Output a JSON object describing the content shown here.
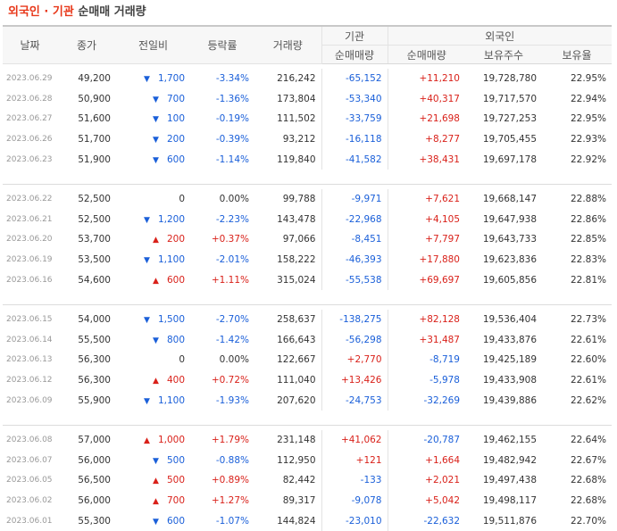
{
  "title": {
    "part1": "외국인",
    "sep": "·",
    "part2": "기관",
    "part3": "순매매 거래량"
  },
  "headers": {
    "date": "날짜",
    "close": "종가",
    "change": "전일비",
    "rate": "등락률",
    "volume": "거래량",
    "inst": "기관",
    "foreign": "외국인",
    "inst_net": "순매매량",
    "foreign_net": "순매매량",
    "holdings": "보유주수",
    "ratio": "보유율"
  },
  "colors": {
    "up": "#d9211a",
    "down": "#1a5fd9"
  },
  "groups": [
    [
      {
        "date": "2023.06.29",
        "close": "49,200",
        "dir": "down",
        "chg": "1,700",
        "rate": "-3.34%",
        "vol": "216,242",
        "inst": "-65,152",
        "foreign": "+11,210",
        "hold": "19,728,780",
        "ratio": "22.95%"
      },
      {
        "date": "2023.06.28",
        "close": "50,900",
        "dir": "down",
        "chg": "700",
        "rate": "-1.36%",
        "vol": "173,804",
        "inst": "-53,340",
        "foreign": "+40,317",
        "hold": "19,717,570",
        "ratio": "22.94%"
      },
      {
        "date": "2023.06.27",
        "close": "51,600",
        "dir": "down",
        "chg": "100",
        "rate": "-0.19%",
        "vol": "111,502",
        "inst": "-33,759",
        "foreign": "+21,698",
        "hold": "19,727,253",
        "ratio": "22.95%"
      },
      {
        "date": "2023.06.26",
        "close": "51,700",
        "dir": "down",
        "chg": "200",
        "rate": "-0.39%",
        "vol": "93,212",
        "inst": "-16,118",
        "foreign": "+8,277",
        "hold": "19,705,455",
        "ratio": "22.93%"
      },
      {
        "date": "2023.06.23",
        "close": "51,900",
        "dir": "down",
        "chg": "600",
        "rate": "-1.14%",
        "vol": "119,840",
        "inst": "-41,582",
        "foreign": "+38,431",
        "hold": "19,697,178",
        "ratio": "22.92%"
      }
    ],
    [
      {
        "date": "2023.06.22",
        "close": "52,500",
        "dir": "zero",
        "chg": "0",
        "rate": "0.00%",
        "vol": "99,788",
        "inst": "-9,971",
        "foreign": "+7,621",
        "hold": "19,668,147",
        "ratio": "22.88%"
      },
      {
        "date": "2023.06.21",
        "close": "52,500",
        "dir": "down",
        "chg": "1,200",
        "rate": "-2.23%",
        "vol": "143,478",
        "inst": "-22,968",
        "foreign": "+4,105",
        "hold": "19,647,938",
        "ratio": "22.86%"
      },
      {
        "date": "2023.06.20",
        "close": "53,700",
        "dir": "up",
        "chg": "200",
        "rate": "+0.37%",
        "vol": "97,066",
        "inst": "-8,451",
        "foreign": "+7,797",
        "hold": "19,643,733",
        "ratio": "22.85%"
      },
      {
        "date": "2023.06.19",
        "close": "53,500",
        "dir": "down",
        "chg": "1,100",
        "rate": "-2.01%",
        "vol": "158,222",
        "inst": "-46,393",
        "foreign": "+17,880",
        "hold": "19,623,836",
        "ratio": "22.83%"
      },
      {
        "date": "2023.06.16",
        "close": "54,600",
        "dir": "up",
        "chg": "600",
        "rate": "+1.11%",
        "vol": "315,024",
        "inst": "-55,538",
        "foreign": "+69,697",
        "hold": "19,605,856",
        "ratio": "22.81%"
      }
    ],
    [
      {
        "date": "2023.06.15",
        "close": "54,000",
        "dir": "down",
        "chg": "1,500",
        "rate": "-2.70%",
        "vol": "258,637",
        "inst": "-138,275",
        "foreign": "+82,128",
        "hold": "19,536,404",
        "ratio": "22.73%"
      },
      {
        "date": "2023.06.14",
        "close": "55,500",
        "dir": "down",
        "chg": "800",
        "rate": "-1.42%",
        "vol": "166,643",
        "inst": "-56,298",
        "foreign": "+31,487",
        "hold": "19,433,876",
        "ratio": "22.61%"
      },
      {
        "date": "2023.06.13",
        "close": "56,300",
        "dir": "zero",
        "chg": "0",
        "rate": "0.00%",
        "vol": "122,667",
        "inst": "+2,770",
        "foreign": "-8,719",
        "hold": "19,425,189",
        "ratio": "22.60%"
      },
      {
        "date": "2023.06.12",
        "close": "56,300",
        "dir": "up",
        "chg": "400",
        "rate": "+0.72%",
        "vol": "111,040",
        "inst": "+13,426",
        "foreign": "-5,978",
        "hold": "19,433,908",
        "ratio": "22.61%"
      },
      {
        "date": "2023.06.09",
        "close": "55,900",
        "dir": "down",
        "chg": "1,100",
        "rate": "-1.93%",
        "vol": "207,620",
        "inst": "-24,753",
        "foreign": "-32,269",
        "hold": "19,439,886",
        "ratio": "22.62%"
      }
    ],
    [
      {
        "date": "2023.06.08",
        "close": "57,000",
        "dir": "up",
        "chg": "1,000",
        "rate": "+1.79%",
        "vol": "231,148",
        "inst": "+41,062",
        "foreign": "-20,787",
        "hold": "19,462,155",
        "ratio": "22.64%"
      },
      {
        "date": "2023.06.07",
        "close": "56,000",
        "dir": "down",
        "chg": "500",
        "rate": "-0.88%",
        "vol": "112,950",
        "inst": "+121",
        "foreign": "+1,664",
        "hold": "19,482,942",
        "ratio": "22.67%"
      },
      {
        "date": "2023.06.05",
        "close": "56,500",
        "dir": "up",
        "chg": "500",
        "rate": "+0.89%",
        "vol": "82,442",
        "inst": "-133",
        "foreign": "+2,021",
        "hold": "19,497,438",
        "ratio": "22.68%"
      },
      {
        "date": "2023.06.02",
        "close": "56,000",
        "dir": "up",
        "chg": "700",
        "rate": "+1.27%",
        "vol": "89,317",
        "inst": "-9,078",
        "foreign": "+5,042",
        "hold": "19,498,117",
        "ratio": "22.68%"
      },
      {
        "date": "2023.06.01",
        "close": "55,300",
        "dir": "down",
        "chg": "600",
        "rate": "-1.07%",
        "vol": "144,824",
        "inst": "-23,010",
        "foreign": "-22,632",
        "hold": "19,511,876",
        "ratio": "22.70%"
      }
    ]
  ]
}
